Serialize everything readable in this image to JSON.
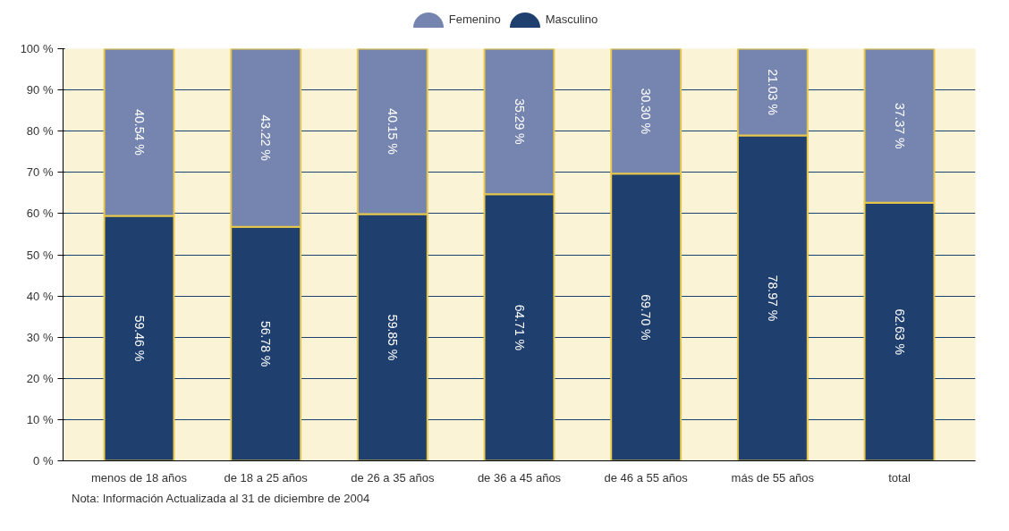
{
  "chart_data": {
    "type": "bar",
    "stacked": true,
    "categories": [
      "menos de 18 años",
      "de 18 a 25 años",
      "de 26 a 35 años",
      "de 36 a 45 años",
      "de 46 a 55 años",
      "más de 55 años",
      "total"
    ],
    "series": [
      {
        "name": "Masculino",
        "color": "#1f3f6e",
        "values": [
          59.46,
          56.78,
          59.85,
          64.71,
          69.7,
          78.97,
          62.63
        ],
        "value_labels": [
          "59.46 %",
          "56.78 %",
          "59.85 %",
          "64.71 %",
          "69.70 %",
          "78.97 %",
          "62.63 %"
        ]
      },
      {
        "name": "Femenino",
        "color": "#7585b0",
        "values": [
          40.54,
          43.22,
          40.15,
          35.29,
          30.3,
          21.03,
          37.37
        ],
        "value_labels": [
          "40.54 %",
          "43.22 %",
          "40.15 %",
          "35.29 %",
          "30.30 %",
          "21.03 %",
          "37.37 %"
        ]
      }
    ],
    "ylim": [
      0,
      100
    ],
    "yticks": [
      {
        "value": 0,
        "label": "0 %"
      },
      {
        "value": 10,
        "label": "10 %"
      },
      {
        "value": 20,
        "label": "20 %"
      },
      {
        "value": 30,
        "label": "30 %"
      },
      {
        "value": 40,
        "label": "40 %"
      },
      {
        "value": 50,
        "label": "50 %"
      },
      {
        "value": 60,
        "label": "60 %"
      },
      {
        "value": 70,
        "label": "70 %"
      },
      {
        "value": 80,
        "label": "80 %"
      },
      {
        "value": 90,
        "label": "90 %"
      },
      {
        "value": 100,
        "label": "100 %"
      }
    ],
    "grid": "y",
    "legend": "top",
    "annotations": [
      "Nota: Información Actualizada al 31 de diciembre de 2004"
    ]
  }
}
